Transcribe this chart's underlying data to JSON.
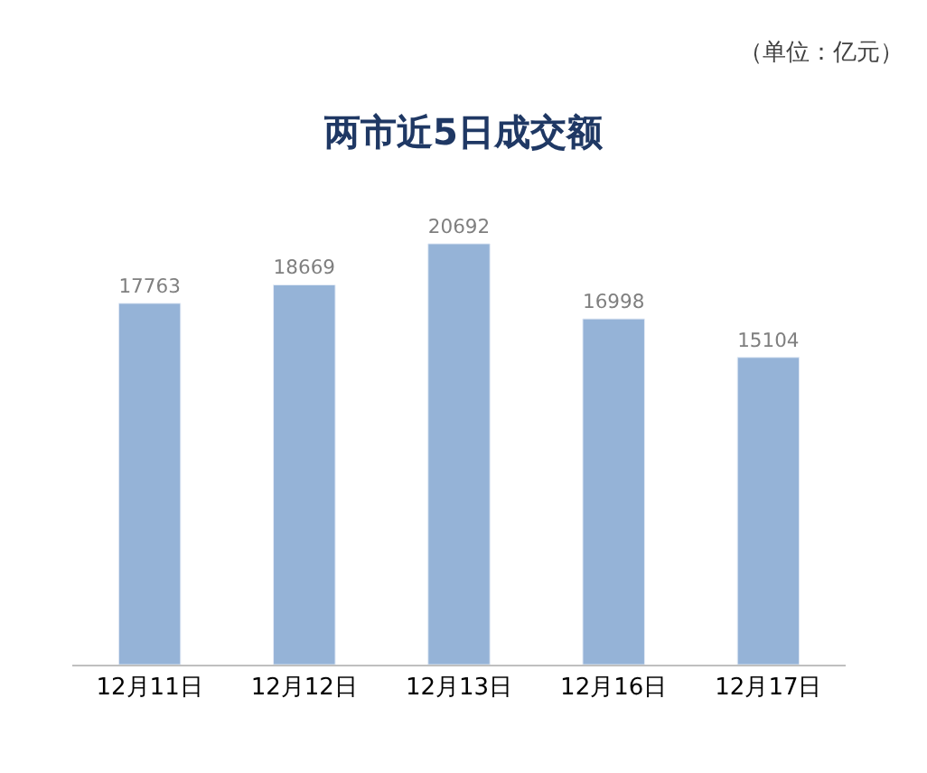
{
  "chart_data": {
    "type": "bar",
    "title": "两市近5日成交额",
    "annotations": [
      "（单位：亿元）"
    ],
    "categories": [
      "12月11日",
      "12月12日",
      "12月13日",
      "12月16日",
      "12月17日"
    ],
    "values": [
      17763,
      18669,
      20692,
      16998,
      15104
    ],
    "color": "#95b3d7",
    "data_labels": true
  }
}
